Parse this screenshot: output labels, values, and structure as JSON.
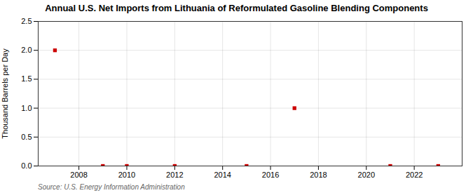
{
  "chart_data": {
    "type": "scatter",
    "title": "Annual U.S. Net Imports from Lithuania of Reformulated Gasoline Blending Components",
    "ylabel": "Thousand Barrels per Day",
    "source": "Source: U.S. Energy Information Administration",
    "x": [
      2007,
      2009,
      2010,
      2012,
      2015,
      2017,
      2021,
      2023
    ],
    "values": [
      2.0,
      0.0,
      0.0,
      0.0,
      0.0,
      1.0,
      0.0,
      0.0
    ],
    "color": "#cc0000",
    "marker": "square",
    "xlim": [
      2006.3,
      2024.0
    ],
    "ylim": [
      0.0,
      2.5
    ],
    "xticks": [
      2008,
      2010,
      2012,
      2014,
      2016,
      2018,
      2020,
      2022
    ],
    "yticks": [
      {
        "value": 0.0,
        "label": "0.0"
      },
      0.5,
      {
        "value": 1.0,
        "label": "1.0"
      },
      1.5,
      {
        "value": 2.0,
        "label": "2.0"
      },
      2.5
    ],
    "grid": true
  }
}
